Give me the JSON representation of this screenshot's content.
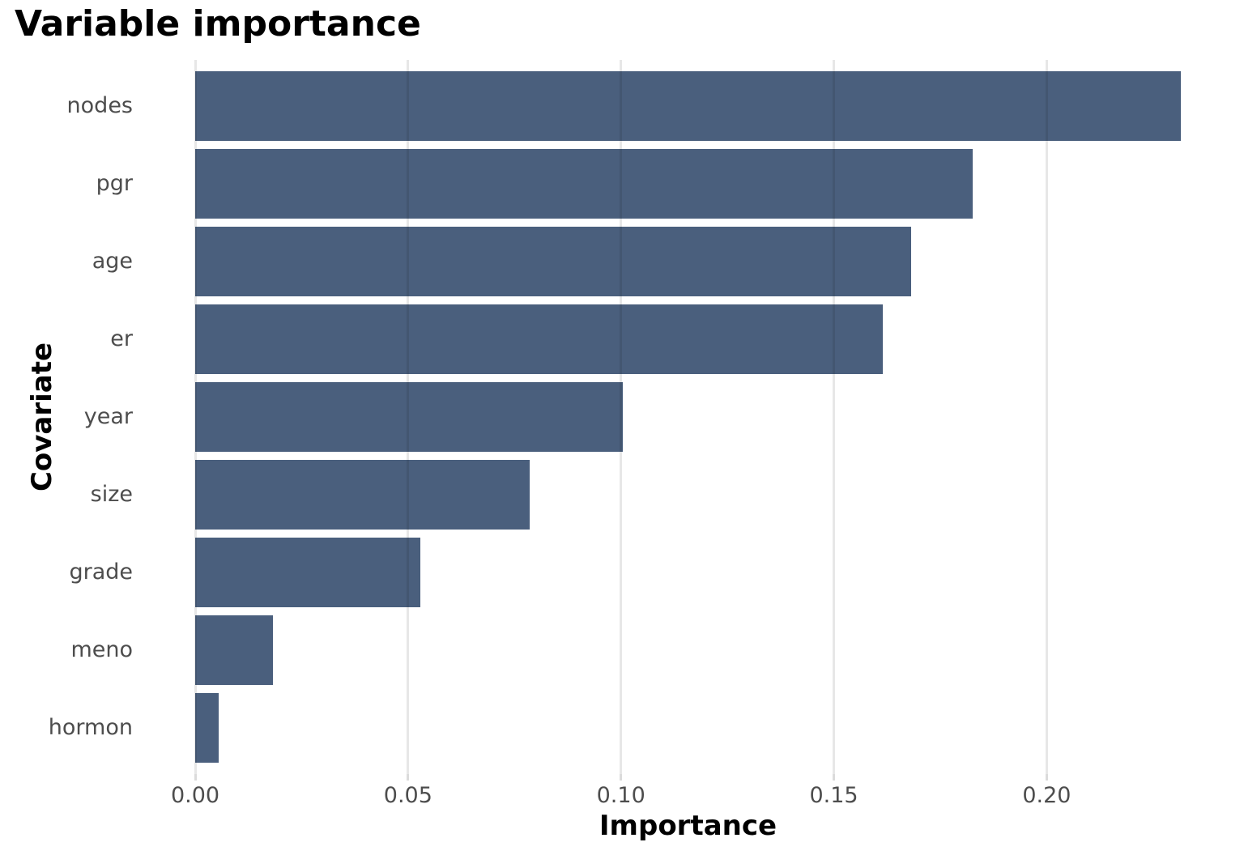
{
  "chart_data": {
    "type": "bar",
    "orientation": "horizontal",
    "title": "Variable importance",
    "xlabel": "Importance",
    "ylabel": "Covariate",
    "categories": [
      "nodes",
      "pgr",
      "age",
      "er",
      "year",
      "size",
      "grade",
      "meno",
      "hormon"
    ],
    "values": [
      0.2315,
      0.1827,
      0.1681,
      0.1615,
      0.1005,
      0.0786,
      0.0528,
      0.0182,
      0.0055
    ],
    "x_ticks": [
      {
        "label": "0.00",
        "value": 0.0
      },
      {
        "label": "0.05",
        "value": 0.05
      },
      {
        "label": "0.10",
        "value": 0.1
      },
      {
        "label": "0.15",
        "value": 0.15
      },
      {
        "label": "0.20",
        "value": 0.2
      }
    ],
    "xlim": [
      0,
      0.2315
    ],
    "bar_color": "#4A5F7D",
    "grid": "vertical major gridlines only, drawn light gray over white",
    "legend": "none",
    "axis_text_color": "#4D4D4D",
    "title_color": "#000000"
  }
}
